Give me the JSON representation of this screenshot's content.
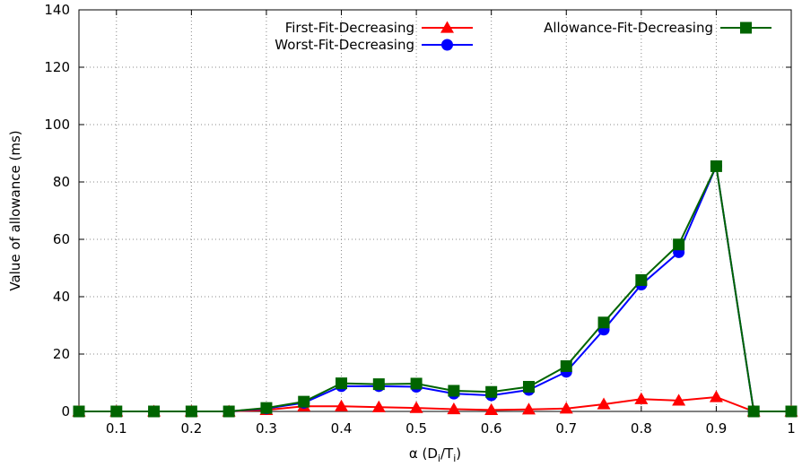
{
  "chart_data": {
    "type": "line",
    "xlabel": "α (D",
    "xlabel_sub1": "i",
    "xlabel_mid": "/T",
    "xlabel_sub2": "i",
    "xlabel_end": ")",
    "ylabel": "Value of allowance (ms)",
    "xlim": [
      0.05,
      1.0
    ],
    "ylim": [
      0,
      140
    ],
    "x_ticks": [
      "0.1",
      "0.2",
      "0.3",
      "0.4",
      "0.5",
      "0.6",
      "0.7",
      "0.8",
      "0.9",
      "1"
    ],
    "x_tick_values": [
      0.1,
      0.2,
      0.3,
      0.4,
      0.5,
      0.6,
      0.7,
      0.8,
      0.9,
      1.0
    ],
    "y_ticks": [
      "0",
      "20",
      "40",
      "60",
      "80",
      "100",
      "120",
      "140"
    ],
    "y_tick_values": [
      0,
      20,
      40,
      60,
      80,
      100,
      120,
      140
    ],
    "grid": true,
    "legend_position": "top-right",
    "x": [
      0.05,
      0.1,
      0.15,
      0.2,
      0.25,
      0.3,
      0.35,
      0.4,
      0.45,
      0.5,
      0.55,
      0.6,
      0.65,
      0.7,
      0.75,
      0.8,
      0.85,
      0.9,
      0.95,
      1.0
    ],
    "series": [
      {
        "name": "First-Fit-Decreasing",
        "color": "#ff0000",
        "marker": "triangle",
        "values": [
          0,
          0,
          0,
          0,
          0,
          0.5,
          1.8,
          1.8,
          1.5,
          1.2,
          0.8,
          0.5,
          0.7,
          1.0,
          2.5,
          4.3,
          3.8,
          5.0,
          0,
          0
        ]
      },
      {
        "name": "Worst-Fit-Decreasing",
        "color": "#0000ff",
        "marker": "circle",
        "values": [
          0,
          0,
          0,
          0,
          0,
          1.0,
          3.0,
          8.8,
          8.8,
          8.6,
          6.2,
          5.6,
          7.5,
          13.8,
          28.5,
          44.2,
          55.5,
          85.5,
          0,
          0
        ]
      },
      {
        "name": "Allowance-Fit-Decreasing",
        "color": "#006400",
        "marker": "square",
        "values": [
          0,
          0,
          0,
          0,
          0,
          1.2,
          3.4,
          9.8,
          9.5,
          9.7,
          7.2,
          6.8,
          8.6,
          15.8,
          31.0,
          45.8,
          58.2,
          85.5,
          0,
          0
        ]
      }
    ]
  }
}
